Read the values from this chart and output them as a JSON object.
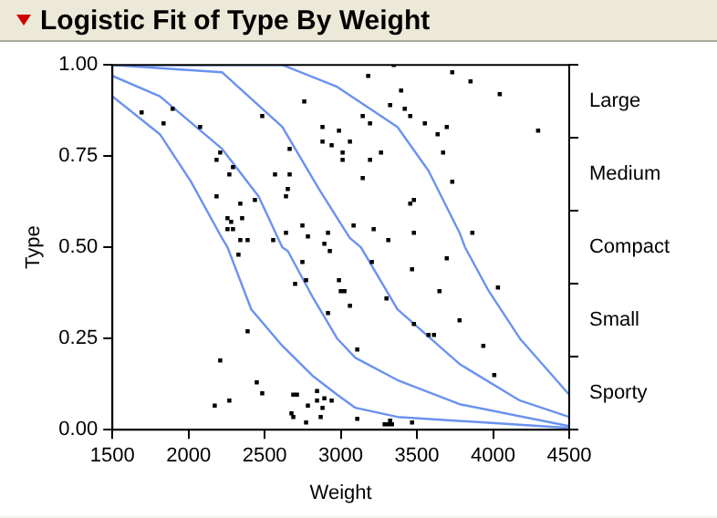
{
  "chart_data": {
    "type": "scatter",
    "title": "Logistic Fit of Type By Weight",
    "xlabel": "Weight",
    "ylabel": "Type",
    "xlim": [
      1500,
      4500
    ],
    "xticks": [
      1500,
      2000,
      2500,
      3000,
      3500,
      4000,
      4500
    ],
    "ylim": [
      0,
      1
    ],
    "yticks": [
      {
        "value": 0,
        "label": "0.00"
      },
      {
        "value": 0.25,
        "label": "0.25"
      },
      {
        "value": 0.5,
        "label": "0.50"
      },
      {
        "value": 0.75,
        "label": "0.75"
      },
      {
        "value": 1,
        "label": "1.00"
      }
    ],
    "y2_categories": [
      "Large",
      "Medium",
      "Compact",
      "Small",
      "Sporty"
    ],
    "grid": false,
    "legend": false,
    "series": [
      {
        "type": "scatter",
        "marker": "square",
        "color": "#000000",
        "x": [
          1692,
          1836,
          1896,
          2076,
          2484,
          2760,
          2880,
          2988,
          2880,
          2940,
          3060,
          3012,
          3012,
          2208,
          2184,
          2664,
          2292,
          2268,
          2568,
          2664,
          2652,
          2640,
          2184,
          2340,
          2436,
          2352,
          2256,
          2280,
          2256,
          2292,
          2340,
          2388,
          2556,
          2640,
          2784,
          2748,
          2916,
          2892,
          2928,
          2328,
          3084,
          3348,
          3180,
          3732,
          3852,
          3396,
          4044,
          3324,
          3420,
          3456,
          3144,
          3192,
          3552,
          3696,
          3636,
          4296,
          3264,
          3192,
          3672,
          3144,
          3732,
          3480,
          3456,
          3216,
          3312,
          3480,
          3864,
          2748,
          2772,
          2700,
          2988,
          3000,
          3024,
          3060,
          2916,
          2388,
          2208,
          2448,
          2484,
          2268,
          2172,
          2688,
          2712,
          2844,
          2844,
          2892,
          2940,
          2880,
          2784,
          2676,
          2688,
          2868,
          2772,
          3204,
          3468,
          3696,
          3300,
          3648,
          4032,
          3480,
          3780,
          3576,
          3612,
          3108,
          3936,
          4008,
          3108,
          3288,
          3312,
          3336,
          3324,
          3468
        ],
        "values": [
          0.87,
          0.84,
          0.88,
          0.83,
          0.86,
          0.9,
          0.83,
          0.82,
          0.79,
          0.78,
          0.79,
          0.76,
          0.74,
          0.76,
          0.74,
          0.77,
          0.72,
          0.7,
          0.7,
          0.7,
          0.66,
          0.64,
          0.64,
          0.62,
          0.63,
          0.58,
          0.58,
          0.57,
          0.55,
          0.55,
          0.52,
          0.52,
          0.52,
          0.54,
          0.53,
          0.56,
          0.54,
          0.51,
          0.49,
          0.48,
          0.56,
          1.0,
          0.97,
          0.98,
          0.955,
          0.93,
          0.92,
          0.89,
          0.88,
          0.86,
          0.86,
          0.84,
          0.84,
          0.83,
          0.81,
          0.82,
          0.76,
          0.74,
          0.76,
          0.69,
          0.68,
          0.63,
          0.62,
          0.55,
          0.52,
          0.54,
          0.54,
          0.46,
          0.41,
          0.4,
          0.41,
          0.38,
          0.38,
          0.34,
          0.32,
          0.27,
          0.19,
          0.13,
          0.1,
          0.08,
          0.066,
          0.096,
          0.096,
          0.106,
          0.08,
          0.086,
          0.08,
          0.06,
          0.066,
          0.045,
          0.035,
          0.035,
          0.02,
          0.46,
          0.44,
          0.47,
          0.36,
          0.38,
          0.39,
          0.29,
          0.3,
          0.26,
          0.26,
          0.22,
          0.23,
          0.15,
          0.03,
          0.015,
          0.015,
          0.015,
          0.025,
          0.02
        ]
      },
      {
        "type": "line",
        "marker": "none",
        "color": "#6a92f0",
        "x": [
          1500,
          1812,
          2016,
          2220,
          2256,
          2412,
          2616,
          2820,
          2976,
          3096,
          3372,
          4500
        ],
        "values": [
          0.914,
          0.81,
          0.68,
          0.525,
          0.5,
          0.33,
          0.23,
          0.146,
          0.096,
          0.06,
          0.035,
          0.005
        ]
      },
      {
        "type": "line",
        "marker": "none",
        "color": "#6a92f0",
        "x": [
          1500,
          1812,
          2220,
          2460,
          2616,
          2652,
          2820,
          2976,
          3096,
          3372,
          3780,
          4500
        ],
        "values": [
          0.97,
          0.914,
          0.77,
          0.64,
          0.5,
          0.49,
          0.36,
          0.25,
          0.197,
          0.136,
          0.07,
          0.01
        ]
      },
      {
        "type": "line",
        "marker": "none",
        "color": "#6a92f0",
        "x": [
          1500,
          2220,
          2616,
          2856,
          3060,
          3132,
          3372,
          3780,
          4176,
          4500
        ],
        "values": [
          1.0,
          0.98,
          0.83,
          0.66,
          0.525,
          0.5,
          0.33,
          0.18,
          0.08,
          0.035
        ]
      },
      {
        "type": "line",
        "marker": "none",
        "color": "#6a92f0",
        "x": [
          1500,
          2616,
          2976,
          3372,
          3576,
          3780,
          3816,
          3972,
          4176,
          4500
        ],
        "values": [
          1.0,
          1.0,
          0.94,
          0.83,
          0.71,
          0.54,
          0.5,
          0.38,
          0.25,
          0.096
        ]
      }
    ]
  }
}
